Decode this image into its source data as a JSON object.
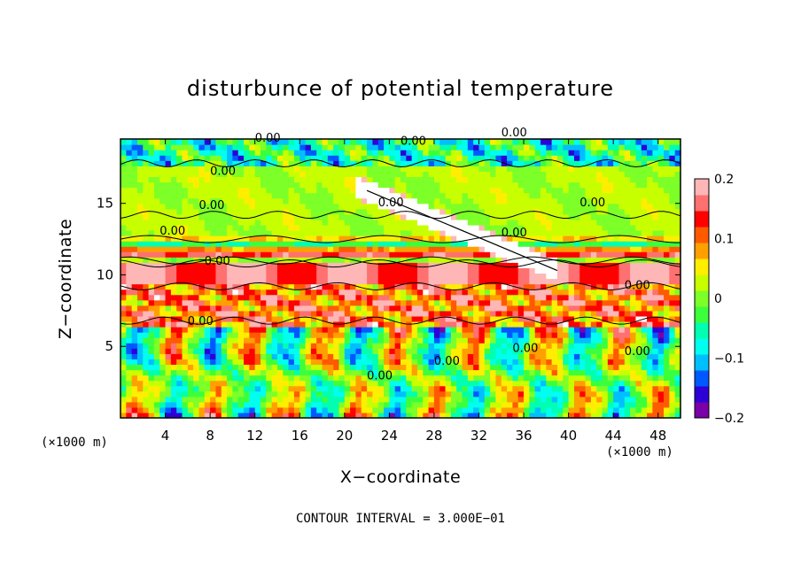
{
  "chart_data": {
    "type": "heatmap",
    "title": "disturbunce of potential temperature",
    "xlabel": "X−coordinate",
    "ylabel": "Z−coordinate",
    "x_unit": "(×1000 m)",
    "x_unit_right": "(×1000 m)",
    "footer": "CONTOUR INTERVAL = 3.000E−01",
    "xlim": [
      0,
      50
    ],
    "ylim": [
      0,
      19.5
    ],
    "x_ticks": [
      "4",
      "8",
      "12",
      "16",
      "20",
      "24",
      "28",
      "32",
      "36",
      "40",
      "44",
      "48"
    ],
    "y_ticks": [
      "5",
      "10",
      "15"
    ],
    "colorbar": {
      "range": [
        -0.2,
        0.2
      ],
      "ticks": [
        "0.2",
        "0.1",
        "0",
        "−0.1",
        "−0.2"
      ],
      "colors": [
        "#7a00a8",
        "#2d00d8",
        "#0058ff",
        "#00bfff",
        "#00ffee",
        "#00ffb0",
        "#3cff3c",
        "#7dff28",
        "#c8ff00",
        "#ffee00",
        "#ffa000",
        "#ff5a00",
        "#ff0000",
        "#ff7070",
        "#ffb6b6"
      ]
    },
    "contour_labels": [
      "0.00",
      "0.00",
      "0.00",
      "0.00",
      "0.00",
      "0.00",
      "0.00",
      "0.00",
      "0.00",
      "0.00",
      "0.00",
      "0.00",
      "0.00",
      "0.00",
      "0.00",
      "0.00"
    ],
    "contour_interval": 0.3
  }
}
